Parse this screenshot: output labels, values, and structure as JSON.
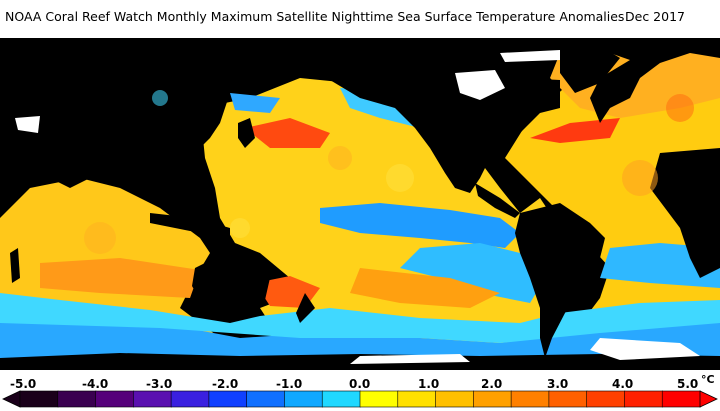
{
  "title": "NOAA Coral Reef Watch Monthly Maximum Satellite Nighttime Sea Surface Temperature Anomalies",
  "date": "Dec 2017",
  "legend": {
    "ticks": [
      "-5.0",
      "-4.0",
      "-3.0",
      "-2.0",
      "-1.0",
      "0.0",
      "1.0",
      "2.0",
      "3.0",
      "4.0",
      "5.0"
    ],
    "unit": "°C",
    "colors": [
      "#1a001a",
      "#3a0050",
      "#55007a",
      "#5a10b0",
      "#3a20e0",
      "#1040ff",
      "#1070ff",
      "#10a8ff",
      "#20d8ff",
      "#ffff00",
      "#ffe000",
      "#ffc000",
      "#ffa000",
      "#ff8000",
      "#ff6000",
      "#ff4000",
      "#ff2000",
      "#ff0000"
    ],
    "land_color": "#000000",
    "ice_color": "#ffffff"
  }
}
